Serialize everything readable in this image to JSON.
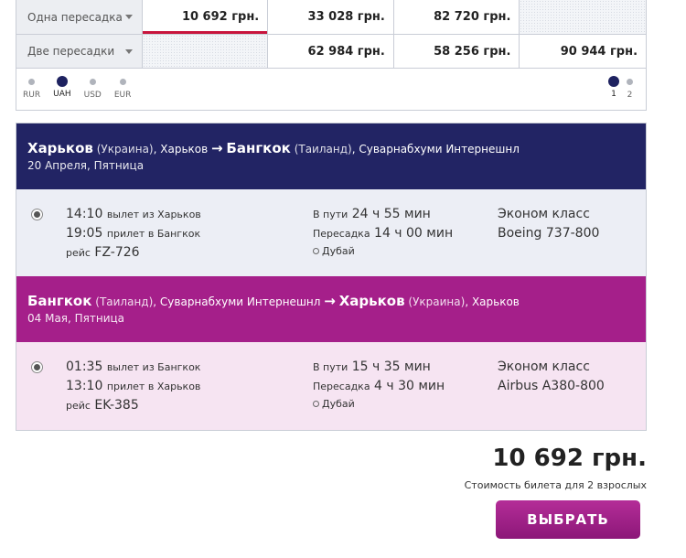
{
  "matrix": {
    "rows": [
      {
        "label": "Одна пересадка",
        "cells": [
          "10 692 грн.",
          "33 028 грн.",
          "82 720 грн.",
          ""
        ]
      },
      {
        "label": "Две пересадки",
        "cells": [
          "",
          "62 984 грн.",
          "58 256 грн.",
          "90 944 грн."
        ]
      }
    ]
  },
  "currencies": [
    {
      "code": "RUR",
      "active": false
    },
    {
      "code": "UAH",
      "active": true
    },
    {
      "code": "USD",
      "active": false
    },
    {
      "code": "EUR",
      "active": false
    }
  ],
  "pages": [
    {
      "label": "1",
      "active": true
    },
    {
      "label": "2",
      "active": false
    }
  ],
  "outbound": {
    "from_city": "Харьков",
    "from_country": "(Украина)",
    "from_airport": ", Харьков",
    "arrow": "→",
    "to_city": "Бангкок",
    "to_country": "(Таиланд)",
    "to_airport": ", Суварнабхуми Интернешнл",
    "date": "20 Апреля, Пятница",
    "dep_time": "14:10",
    "dep_text": "вылет из Харьков",
    "arr_time": "19:05",
    "arr_text": "прилет в Бангкок",
    "flight_prefix": "рейс",
    "flight_no": "FZ-726",
    "duration_label": "В пути",
    "duration": "24 ч 55 мин",
    "layover_label": "Пересадка",
    "layover": "14 ч 00 мин",
    "stop": "Дубай",
    "class": "Эконом класс",
    "aircraft": "Boeing 737-800"
  },
  "return": {
    "from_city": "Бангкок",
    "from_country": "(Таиланд)",
    "from_airport": ", Суварнабхуми Интернешнл",
    "arrow": "→",
    "to_city": "Харьков",
    "to_country": "(Украина)",
    "to_airport": ", Харьков",
    "date": "04 Мая, Пятница",
    "dep_time": "01:35",
    "dep_text": "вылет из Бангкок",
    "arr_time": "13:10",
    "arr_text": "прилет в Харьков",
    "flight_prefix": "рейс",
    "flight_no": "EK-385",
    "duration_label": "В пути",
    "duration": "15 ч 35 мин",
    "layover_label": "Пересадка",
    "layover": "4 ч 30 мин",
    "stop": "Дубай",
    "class": "Эконом класс",
    "aircraft": "Airbus A380-800"
  },
  "total": {
    "price": "10 692 грн.",
    "note": "Стоимость билета для 2 взрослых",
    "button": "ВЫБРАТЬ"
  },
  "colors": {
    "outbound_header": "#222464",
    "return_header": "#a51f8a",
    "selected_underline": "#c8143c",
    "button": "#a0228a"
  }
}
